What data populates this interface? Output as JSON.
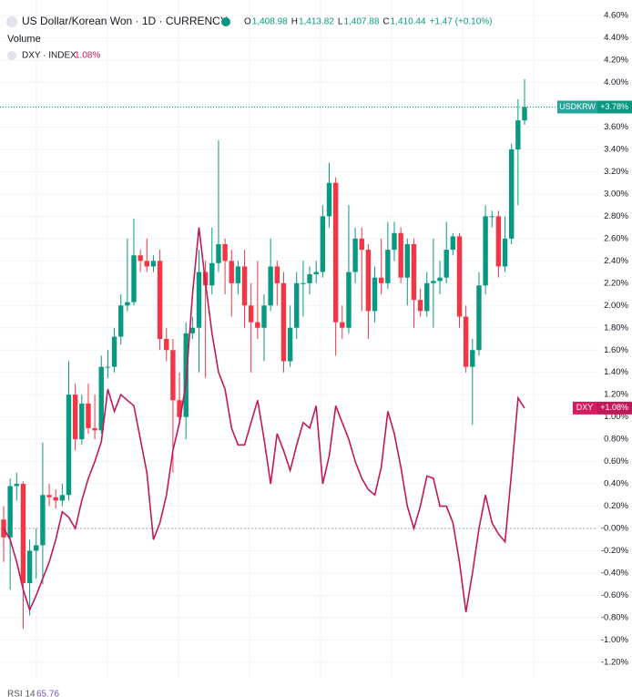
{
  "header": {
    "symbol": "US Dollar/Korean Won · 1D · CURRENCY",
    "ohlc": [
      {
        "key": "O",
        "value": "1,408.98"
      },
      {
        "key": "H",
        "value": "1,413.82"
      },
      {
        "key": "L",
        "value": "1,407.88"
      },
      {
        "key": "C",
        "value": "1,410.44"
      }
    ],
    "change": "+1.47 (+0.10%)",
    "volume": "Volume",
    "compare": "DXY · INDEX",
    "compare_change": "1.08%"
  },
  "chart_data": {
    "type": "candlestick",
    "ylim": [
      -1.34,
      4.74
    ],
    "yticks": [
      {
        "value": 4.6,
        "label": "4.60%"
      },
      {
        "value": 4.4,
        "label": "4.40%"
      },
      {
        "value": 4.2,
        "label": "4.20%"
      },
      {
        "value": 4.0,
        "label": "4.00%"
      },
      {
        "value": 3.8,
        "label": "3.80%"
      },
      {
        "value": 3.6,
        "label": "3.60%"
      },
      {
        "value": 3.4,
        "label": "3.40%"
      },
      {
        "value": 3.2,
        "label": "3.20%"
      },
      {
        "value": 3.0,
        "label": "3.00%"
      },
      {
        "value": 2.8,
        "label": "2.80%"
      },
      {
        "value": 2.6,
        "label": "2.60%"
      },
      {
        "value": 2.4,
        "label": "2.40%"
      },
      {
        "value": 2.2,
        "label": "2.20%"
      },
      {
        "value": 2.0,
        "label": "2.00%"
      },
      {
        "value": 1.8,
        "label": "1.80%"
      },
      {
        "value": 1.6,
        "label": "1.60%"
      },
      {
        "value": 1.4,
        "label": "1.40%"
      },
      {
        "value": 1.2,
        "label": "1.20%"
      },
      {
        "value": 1.0,
        "label": "1.00%"
      },
      {
        "value": 0.8,
        "label": "0.80%"
      },
      {
        "value": 0.6,
        "label": "0.60%"
      },
      {
        "value": 0.4,
        "label": "0.40%"
      },
      {
        "value": 0.2,
        "label": "0.20%"
      },
      {
        "value": 0,
        "label": "-0.00%"
      },
      {
        "value": -0.2,
        "label": "-0.20%"
      },
      {
        "value": -0.4,
        "label": "-0.40%"
      },
      {
        "value": -0.6,
        "label": "-0.60%"
      },
      {
        "value": -0.8,
        "label": "-0.80%"
      },
      {
        "value": -1.0,
        "label": "-1.00%"
      },
      {
        "value": -1.2,
        "label": "-1.20%"
      }
    ],
    "up_color": "#089981",
    "down_color": "#f23645",
    "open": [
      0.08,
      -0.08,
      0.38,
      0.4,
      -0.49,
      -0.2,
      -0.15,
      0.3,
      0.28,
      0.25,
      0.3,
      1.2,
      0.8,
      1.12,
      0.9,
      0.88,
      1.45,
      1.45,
      1.72,
      2.0,
      2.03,
      2.45,
      2.4,
      2.35,
      2.4,
      1.7,
      1.6,
      1.15,
      1.0,
      1.75,
      1.8,
      2.3,
      2.18,
      2.38,
      2.55,
      2.4,
      2.2,
      2.35,
      2.0,
      1.85,
      1.8,
      2.0,
      2.35,
      2.2,
      1.5,
      1.8,
      2.2,
      2.2,
      2.28,
      2.3,
      2.8,
      3.1,
      1.85,
      1.8,
      2.3,
      2.6,
      2.5,
      1.95,
      2.25,
      2.2,
      2.5,
      2.65,
      2.25,
      2.55,
      2.05,
      1.95,
      2.2,
      2.22,
      2.25,
      2.5,
      2.62,
      1.9,
      1.45,
      1.6,
      2.18,
      2.8,
      2.8,
      2.35,
      2.6,
      3.4,
      3.66
    ],
    "high": [
      0.2,
      0.45,
      0.5,
      0.42,
      -0.1,
      0.0,
      0.77,
      0.4,
      0.35,
      0.4,
      1.5,
      1.3,
      1.2,
      1.3,
      1.2,
      1.55,
      1.6,
      1.8,
      2.1,
      2.6,
      2.78,
      2.5,
      2.6,
      2.45,
      2.5,
      1.8,
      1.7,
      1.4,
      1.85,
      1.9,
      2.5,
      2.4,
      2.7,
      3.48,
      2.6,
      2.5,
      2.4,
      2.5,
      2.2,
      2.4,
      2.1,
      2.6,
      2.4,
      2.3,
      2.0,
      2.3,
      2.4,
      2.35,
      2.4,
      2.9,
      3.28,
      3.15,
      2.0,
      2.9,
      2.7,
      2.7,
      2.55,
      2.35,
      2.6,
      2.75,
      2.75,
      2.7,
      2.6,
      2.6,
      2.15,
      2.3,
      2.6,
      2.4,
      2.75,
      2.65,
      2.65,
      2.0,
      1.7,
      2.3,
      2.9,
      2.85,
      2.85,
      2.8,
      3.45,
      3.85,
      4.03
    ],
    "low": [
      -0.3,
      -0.55,
      0.25,
      -0.9,
      -0.78,
      -0.45,
      -0.5,
      0.2,
      0.18,
      0.2,
      0.25,
      0.7,
      0.75,
      0.85,
      0.8,
      0.85,
      1.35,
      1.4,
      1.65,
      1.95,
      2.0,
      2.3,
      2.3,
      2.3,
      1.6,
      1.5,
      0.5,
      0.95,
      0.8,
      1.7,
      1.4,
      1.35,
      2.1,
      2.3,
      2.1,
      1.9,
      2.1,
      1.8,
      1.4,
      1.7,
      1.5,
      1.95,
      2.0,
      1.4,
      1.45,
      1.7,
      1.9,
      2.1,
      2.2,
      2.25,
      2.7,
      1.55,
      1.7,
      1.75,
      2.2,
      1.95,
      1.7,
      1.85,
      2.1,
      2.15,
      2.4,
      2.2,
      2.0,
      1.8,
      1.9,
      1.9,
      1.8,
      2.1,
      2.2,
      2.45,
      1.8,
      1.4,
      0.93,
      1.55,
      2.1,
      2.7,
      2.25,
      2.3,
      2.55,
      2.9,
      3.62
    ],
    "close": [
      -0.08,
      0.38,
      0.4,
      -0.49,
      -0.2,
      -0.15,
      0.3,
      0.28,
      0.25,
      0.3,
      1.2,
      0.8,
      1.12,
      0.9,
      0.88,
      1.45,
      1.45,
      1.72,
      2.0,
      2.03,
      2.45,
      2.4,
      2.35,
      2.4,
      1.7,
      1.6,
      1.15,
      1.0,
      1.75,
      1.8,
      2.3,
      2.18,
      2.38,
      2.55,
      2.4,
      2.2,
      2.35,
      2.0,
      1.85,
      1.8,
      2.0,
      2.35,
      2.2,
      1.5,
      1.8,
      2.2,
      2.2,
      2.28,
      2.3,
      2.8,
      3.1,
      1.85,
      1.8,
      2.3,
      2.6,
      2.5,
      1.95,
      2.25,
      2.2,
      2.5,
      2.65,
      2.25,
      2.55,
      2.05,
      1.95,
      2.2,
      2.22,
      2.25,
      2.5,
      2.62,
      1.9,
      1.45,
      1.6,
      2.18,
      2.8,
      2.8,
      2.35,
      2.6,
      3.4,
      3.66,
      3.78
    ],
    "compare_series": {
      "name": "DXY",
      "color": "#c2185b",
      "values": [
        0.0,
        -0.1,
        -0.3,
        -0.55,
        -0.73,
        -0.6,
        -0.45,
        -0.3,
        -0.1,
        0.15,
        0.1,
        0.0,
        0.25,
        0.45,
        0.6,
        0.78,
        1.25,
        1.05,
        1.2,
        1.15,
        1.1,
        0.8,
        0.5,
        -0.1,
        0.05,
        0.3,
        0.7,
        0.95,
        1.3,
        2.1,
        2.7,
        2.2,
        1.75,
        1.4,
        1.25,
        0.9,
        0.75,
        0.75,
        0.95,
        1.15,
        0.8,
        0.4,
        0.85,
        0.7,
        0.52,
        0.75,
        0.95,
        0.9,
        1.1,
        0.4,
        0.65,
        1.1,
        0.95,
        0.8,
        0.6,
        0.45,
        0.35,
        0.3,
        0.55,
        1.05,
        0.85,
        0.55,
        0.2,
        0.0,
        0.2,
        0.47,
        0.45,
        0.2,
        0.2,
        0.05,
        -0.3,
        -0.75,
        -0.4,
        0.0,
        0.3,
        0.05,
        -0.05,
        -0.12,
        0.5,
        1.17,
        1.08
      ]
    },
    "price_tag": {
      "name": "USDKRW",
      "value": 3.78,
      "label": "+3.78%"
    },
    "compare_tag": {
      "name": "DXY",
      "value": 1.08,
      "label": "+1.08%"
    }
  },
  "footer": {
    "indicator": "RSI 14",
    "value": "65.76"
  }
}
